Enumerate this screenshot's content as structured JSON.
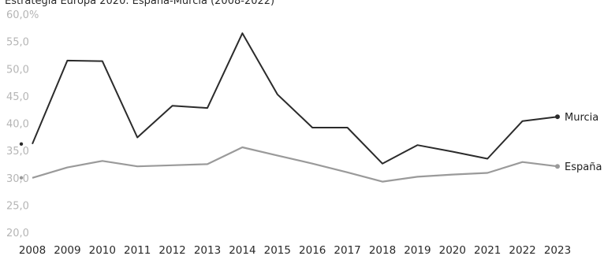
{
  "title": "Estrategia Europa 2020. España-Murcia (2008-2022)",
  "chart_data": {
    "type": "line",
    "title": "Estrategia Europa 2020. España-Murcia (2008-2022)",
    "xlabel": "",
    "ylabel": "",
    "ylim": [
      20,
      60
    ],
    "grid": false,
    "x": [
      "2008",
      "2009",
      "2010",
      "2011",
      "2012",
      "2013",
      "2014",
      "2015",
      "2016",
      "2017",
      "2018",
      "2019",
      "2020",
      "2021",
      "2022",
      "2023"
    ],
    "y_ticks": [
      "20,0",
      "25,0",
      "30,0",
      "35,0",
      "40,0",
      "45,0",
      "50,0",
      "55,0",
      "60,0%"
    ],
    "series": [
      {
        "name": "Murcia",
        "color": "#2b2b2b",
        "values": [
          36.2,
          51.5,
          51.4,
          37.4,
          43.2,
          42.8,
          56.5,
          45.3,
          39.2,
          39.2,
          32.6,
          36.0,
          34.8,
          33.5,
          40.4,
          41.2
        ]
      },
      {
        "name": "España",
        "color": "#9a9a9a",
        "values": [
          30.0,
          31.9,
          33.1,
          32.1,
          32.3,
          32.5,
          35.6,
          34.1,
          32.6,
          31.0,
          29.3,
          30.2,
          30.6,
          30.9,
          32.9,
          32.1
        ]
      }
    ]
  }
}
